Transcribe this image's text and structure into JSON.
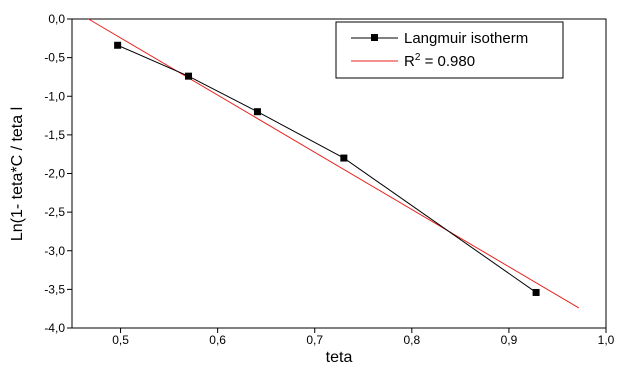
{
  "chart_data": {
    "type": "line",
    "xlabel": "teta",
    "ylabel": "Ln(1-  teta*C / teta l",
    "xlim": [
      0.45,
      1.0
    ],
    "ylim": [
      -4.0,
      0.0
    ],
    "x_ticks": [
      0.5,
      0.6,
      0.7,
      0.8,
      0.9,
      1.0
    ],
    "x_tick_labels": [
      "0,5",
      "0,6",
      "0,7",
      "0,8",
      "0,9",
      "1,0"
    ],
    "y_ticks": [
      0.0,
      -0.5,
      -1.0,
      -1.5,
      -2.0,
      -2.5,
      -3.0,
      -3.5,
      -4.0
    ],
    "y_tick_labels": [
      "0,0",
      "-0,5",
      "-1,0",
      "-1,5",
      "-2,0",
      "-2,5",
      "-3,0",
      "-3,5",
      "-4,0"
    ],
    "grid": false,
    "legend_position": "top-right",
    "series": [
      {
        "name": "Langmuir isotherm",
        "style": "line-with-square-markers",
        "color": "#000000",
        "x": [
          0.497,
          0.57,
          0.641,
          0.73,
          0.928
        ],
        "y": [
          -0.34,
          -0.74,
          -1.2,
          -1.8,
          -3.54
        ]
      },
      {
        "name_prefix": "R",
        "name_superscript": "2",
        "name_suffix": " = 0.980",
        "style": "line",
        "color": "#e8211d",
        "x": [
          0.467,
          0.972
        ],
        "y": [
          0.0,
          -3.74
        ]
      }
    ]
  }
}
